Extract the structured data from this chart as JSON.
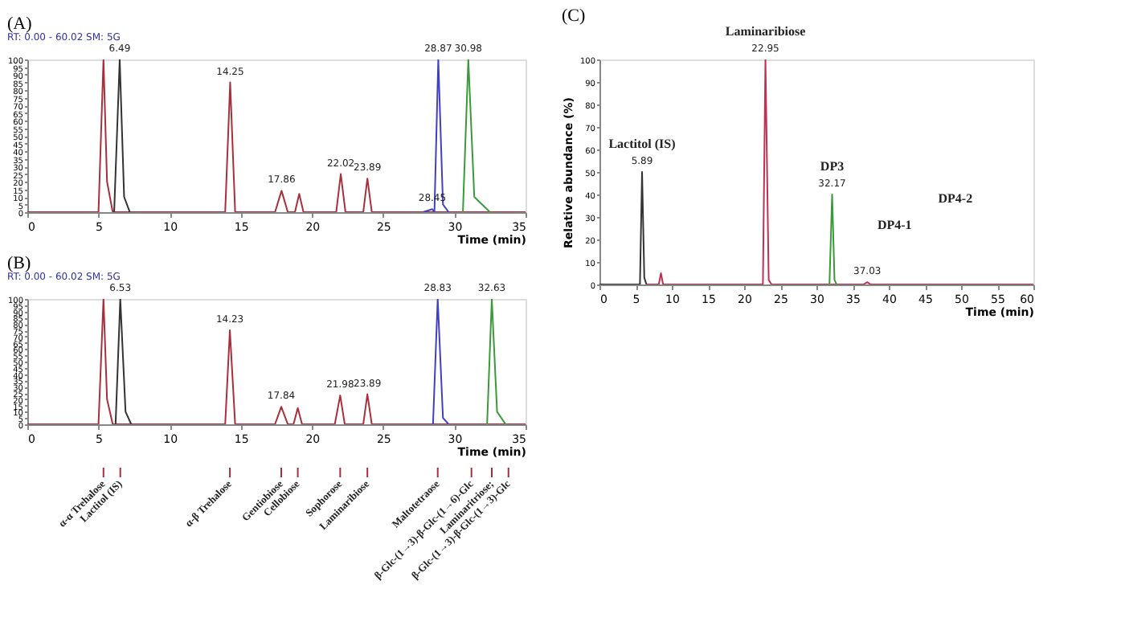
{
  "chart_data": [
    {
      "type": "line",
      "title": "(A)",
      "subtitle": "RT: 0.00 - 60.02 SM: 5G",
      "xlabel": "Time (min)",
      "xlim": [
        0,
        35
      ],
      "xticks": [
        0,
        5,
        10,
        15,
        20,
        25,
        30,
        35
      ],
      "ylim": [
        0,
        100
      ],
      "yticks": [
        0,
        5,
        10,
        15,
        20,
        25,
        30,
        35,
        40,
        45,
        50,
        55,
        60,
        65,
        70,
        75,
        80,
        85,
        90,
        95,
        100
      ],
      "grid": false,
      "legend": false,
      "line_style": "solid",
      "series": [
        {
          "color": "#a8303c",
          "x": [
            0,
            5.0,
            5.35,
            5.6,
            6.0,
            13.9,
            14.25,
            14.6,
            17.4,
            17.86,
            18.3,
            18.8,
            19.1,
            19.4,
            21.7,
            22.02,
            22.35,
            23.6,
            23.89,
            24.2,
            35
          ],
          "values": [
            0,
            0,
            100,
            20,
            0,
            0,
            85,
            0,
            0,
            14,
            0,
            0,
            12,
            0,
            0,
            25,
            0,
            0,
            22,
            0,
            0
          ]
        },
        {
          "color": "#333333",
          "x": [
            6.1,
            6.49,
            6.8,
            7.2
          ],
          "values": [
            0,
            100,
            10,
            0
          ]
        },
        {
          "color": "#4040c0",
          "x": [
            27.8,
            28.45,
            28.6,
            28.87,
            29.2,
            29.6
          ],
          "values": [
            0,
            2,
            0,
            100,
            5,
            0
          ]
        },
        {
          "color": "#3a9a3a",
          "x": [
            30.6,
            30.98,
            31.4,
            32.5
          ],
          "values": [
            0,
            100,
            10,
            0
          ]
        }
      ],
      "annotations": [
        {
          "text": "6.49",
          "x": 6.49,
          "y": 100
        },
        {
          "text": "14.25",
          "x": 14.25,
          "y": 85
        },
        {
          "text": "17.86",
          "x": 17.86,
          "y": 14
        },
        {
          "text": "22.02",
          "x": 22.02,
          "y": 25
        },
        {
          "text": "23.89",
          "x": 23.89,
          "y": 22
        },
        {
          "text": "28.45",
          "x": 28.45,
          "y": 2
        },
        {
          "text": "28.87",
          "x": 28.87,
          "y": 100
        },
        {
          "text": "30.98",
          "x": 30.98,
          "y": 100
        }
      ]
    },
    {
      "type": "line",
      "title": "(B)",
      "subtitle": "RT: 0.00 - 60.02 SM: 5G",
      "xlabel": "Time (min)",
      "xlim": [
        0,
        35
      ],
      "xticks": [
        0,
        5,
        10,
        15,
        20,
        25,
        30,
        35
      ],
      "ylim": [
        0,
        100
      ],
      "yticks": [
        0,
        5,
        10,
        15,
        20,
        25,
        30,
        35,
        40,
        45,
        50,
        55,
        60,
        65,
        70,
        75,
        80,
        85,
        90,
        95,
        100
      ],
      "grid": false,
      "legend": false,
      "line_style": "solid",
      "series": [
        {
          "color": "#a8303c",
          "x": [
            0,
            5.0,
            5.35,
            5.6,
            6.0,
            13.9,
            14.23,
            14.6,
            17.4,
            17.84,
            18.3,
            18.7,
            19.0,
            19.3,
            21.6,
            21.98,
            22.3,
            23.6,
            23.89,
            24.2,
            35
          ],
          "values": [
            0,
            0,
            100,
            20,
            0,
            0,
            75,
            0,
            0,
            14,
            0,
            0,
            13,
            0,
            0,
            23,
            0,
            0,
            24,
            0,
            0
          ]
        },
        {
          "color": "#333333",
          "x": [
            6.2,
            6.53,
            6.9,
            7.3
          ],
          "values": [
            0,
            100,
            10,
            0
          ]
        },
        {
          "color": "#4040c0",
          "x": [
            28.5,
            28.83,
            29.2,
            29.6
          ],
          "values": [
            0,
            100,
            5,
            0
          ]
        },
        {
          "color": "#3a9a3a",
          "x": [
            32.3,
            32.63,
            33.0,
            33.6
          ],
          "values": [
            0,
            100,
            10,
            0
          ]
        }
      ],
      "annotations": [
        {
          "text": "6.53",
          "x": 6.53,
          "y": 100
        },
        {
          "text": "14.23",
          "x": 14.23,
          "y": 75
        },
        {
          "text": "17.84",
          "x": 17.84,
          "y": 14
        },
        {
          "text": "21.98",
          "x": 21.98,
          "y": 23
        },
        {
          "text": "23.89",
          "x": 23.89,
          "y": 24
        },
        {
          "text": "28.83",
          "x": 28.83,
          "y": 100
        },
        {
          "text": "32.63",
          "x": 32.63,
          "y": 100
        }
      ],
      "ref_lines": [
        {
          "axis": "x",
          "value": 5.35,
          "label": "α-α Trehalose",
          "color": "#a8303c"
        },
        {
          "axis": "x",
          "value": 6.53,
          "label": "Lactitol (IS)",
          "color": "#a8303c"
        },
        {
          "axis": "x",
          "value": 14.23,
          "label": "α-β Trehalose",
          "color": "#a8303c"
        },
        {
          "axis": "x",
          "value": 17.84,
          "label": "Gentiobiose",
          "color": "#a8303c"
        },
        {
          "axis": "x",
          "value": 19.0,
          "label": "Cellobiose",
          "color": "#a8303c"
        },
        {
          "axis": "x",
          "value": 21.98,
          "label": "Sophorose",
          "color": "#a8303c"
        },
        {
          "axis": "x",
          "value": 23.89,
          "label": "Laminaribiose",
          "color": "#a8303c"
        },
        {
          "axis": "x",
          "value": 28.83,
          "label": "Maltotetraose",
          "color": "#a8303c"
        },
        {
          "axis": "x",
          "value": 31.2,
          "label": "β-Glc-(1→3)-β-Glc-(1→6)-Glc",
          "color": "#a8303c"
        },
        {
          "axis": "x",
          "value": 32.63,
          "label": "Laminaritriose;",
          "color": "#a8303c"
        },
        {
          "axis": "x",
          "value": 33.8,
          "label": "β-Glc-(1→3)-β-Glc-(1→3)-Glc",
          "color": "#a8303c"
        }
      ]
    },
    {
      "type": "line",
      "title": "(C)",
      "xlabel": "Time (min)",
      "ylabel": "Relative abundance (%)",
      "xlim": [
        0,
        60
      ],
      "xticks": [
        0,
        5,
        10,
        15,
        20,
        25,
        30,
        35,
        40,
        45,
        50,
        55,
        60
      ],
      "ylim": [
        0,
        100
      ],
      "yticks": [
        0,
        10,
        20,
        30,
        40,
        50,
        60,
        70,
        80,
        90,
        100
      ],
      "grid": false,
      "legend": false,
      "line_style": "solid",
      "series": [
        {
          "color": "#333333",
          "x": [
            0,
            5.6,
            5.89,
            6.2,
            6.5
          ],
          "values": [
            0,
            0,
            50,
            3,
            0
          ]
        },
        {
          "color": "#c03050",
          "x": [
            6.5,
            8.2,
            8.5,
            8.8,
            22.6,
            22.95,
            23.4,
            23.8,
            36.5,
            37.03,
            37.5,
            60
          ],
          "values": [
            0,
            0,
            5,
            0,
            0,
            100,
            2,
            0,
            0,
            1,
            0,
            0
          ]
        },
        {
          "color": "#3a9a3a",
          "x": [
            31.8,
            32.17,
            32.5,
            32.8
          ],
          "values": [
            0,
            40,
            2,
            0
          ]
        }
      ],
      "annotations": [
        {
          "text": "Lactitol (IS)",
          "x": 5.89,
          "y": 50
        },
        {
          "text": "5.89",
          "x": 5.89,
          "y": 50
        },
        {
          "text": "Laminaribiose",
          "x": 22.95,
          "y": 100
        },
        {
          "text": "22.95",
          "x": 22.95,
          "y": 100
        },
        {
          "text": "DP3",
          "x": 32.17,
          "y": 40
        },
        {
          "text": "32.17",
          "x": 32.17,
          "y": 40
        },
        {
          "text": "37.03",
          "x": 37.03,
          "y": 1
        },
        "DP4-1",
        "DP4-2"
      ]
    }
  ]
}
